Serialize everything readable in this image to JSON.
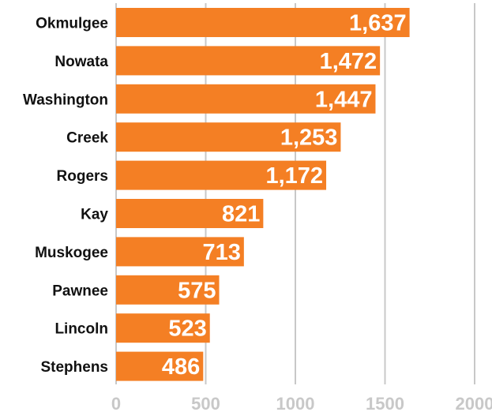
{
  "chart_data": {
    "type": "bar",
    "orientation": "horizontal",
    "categories": [
      "Okmulgee",
      "Nowata",
      "Washington",
      "Creek",
      "Rogers",
      "Kay",
      "Muskogee",
      "Pawnee",
      "Lincoln",
      "Stephens"
    ],
    "values": [
      1637,
      1472,
      1447,
      1253,
      1172,
      821,
      713,
      575,
      523,
      486
    ],
    "data_labels": [
      "1,637",
      "1,472",
      "1,447",
      "1,253",
      "1,172",
      "821",
      "713",
      "575",
      "523",
      "486"
    ],
    "xlim": [
      0,
      2000
    ],
    "x_ticks": [
      0,
      500,
      1000,
      1500,
      2000
    ],
    "x_tick_labels": [
      "0",
      "500",
      "1000",
      "1500",
      "2000"
    ],
    "grid": true,
    "bar_color": "#f47f24",
    "grid_color": "#c8c8c8",
    "tick_label_color": "#c8c8c8",
    "data_label_color": "#ffffff",
    "category_label_color": "#111111"
  }
}
